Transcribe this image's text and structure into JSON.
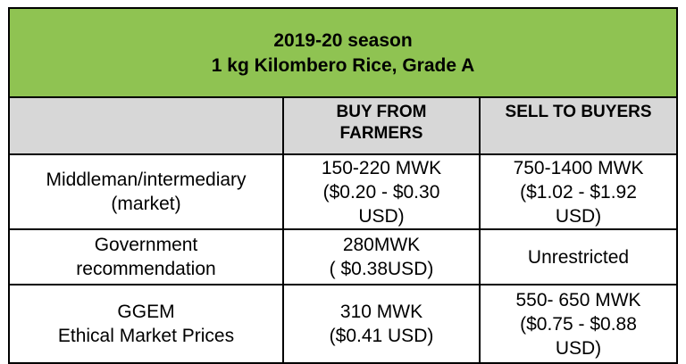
{
  "title": {
    "line1": "2019-20 season",
    "line2": "1 kg Kilombero Rice, Grade A"
  },
  "columns": {
    "buy": [
      "BUY FROM",
      "FARMERS"
    ],
    "sell": [
      "SELL TO BUYERS"
    ]
  },
  "rows": [
    {
      "label": [
        "Middleman/intermediary",
        "(market)"
      ],
      "buy": [
        "150-220 MWK",
        "($0.20 - $0.30",
        "USD)"
      ],
      "sell": [
        "750-1400 MWK",
        "($1.02 - $1.92",
        "USD)"
      ]
    },
    {
      "label": [
        "Government",
        "recommendation"
      ],
      "buy": [
        "280MWK",
        "( $0.38USD)"
      ],
      "sell": [
        "Unrestricted"
      ]
    },
    {
      "label": [
        "GGEM",
        "Ethical Market Prices"
      ],
      "buy": [
        "310 MWK",
        "($0.41 USD)"
      ],
      "sell": [
        "550- 650 MWK",
        "($0.75 - $0.88",
        "USD)"
      ]
    }
  ],
  "colors": {
    "title_bg": "#8fc352",
    "header_bg": "#d7d7d7",
    "border": "#000000"
  }
}
